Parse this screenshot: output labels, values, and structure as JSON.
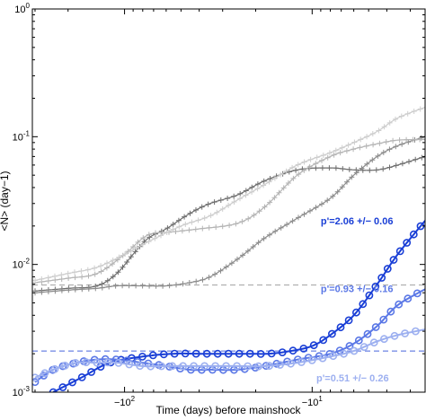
{
  "chart_data": {
    "type": "line",
    "title": "",
    "xlabel": "Time (days) before mainshock",
    "ylabel": "<N> (day−1)",
    "x_scale": "log",
    "y_scale": "log",
    "x_axis_direction": "days before mainshock decreasing to the right",
    "xlim": [
      -310,
      -2.5
    ],
    "ylim": [
      0.001,
      1
    ],
    "x_tick_labels": [
      {
        "value": -100,
        "label": "−10",
        "sup": "2"
      },
      {
        "value": -10,
        "label": "−10",
        "sup": "1"
      }
    ],
    "y_tick_labels": [
      {
        "value": 0.001,
        "label": "10",
        "sup": "-3"
      },
      {
        "value": 0.01,
        "label": "10",
        "sup": "-2"
      },
      {
        "value": 0.1,
        "label": "10",
        "sup": "-1"
      },
      {
        "value": 1,
        "label": "10",
        "sup": "0"
      }
    ],
    "grid": false,
    "legend": null,
    "colors": {
      "gray_dark": "#6e6e6e",
      "gray_mid": "#8c8c8c",
      "gray_light": "#b4b4b4",
      "gray_lighter": "#cdcdcd",
      "blue_dark": "#1a3fd6",
      "blue_mid": "#5b78e6",
      "blue_light": "#9db0f0",
      "baseline_gray": "#8a8a8a",
      "baseline_blue": "#1a3fd6"
    },
    "baselines": [
      {
        "value": 0.0069,
        "color": "baseline_gray"
      },
      {
        "value": 0.0021,
        "color": "baseline_blue"
      }
    ],
    "series": [
      {
        "color": "gray_dark",
        "marker": "plus",
        "x": [
          -300,
          -200,
          -140,
          -110,
          -90,
          -75,
          -60,
          -45,
          -35,
          -25,
          -18,
          -12,
          -8,
          -6,
          -4.5,
          -3.5,
          -2.5
        ],
        "y": [
          0.0062,
          0.0065,
          0.0068,
          0.0085,
          0.012,
          0.016,
          0.019,
          0.025,
          0.03,
          0.035,
          0.045,
          0.055,
          0.057,
          0.055,
          0.055,
          0.06,
          0.07
        ]
      },
      {
        "color": "gray_mid",
        "marker": "plus",
        "x": [
          -300,
          -200,
          -140,
          -110,
          -80,
          -60,
          -45,
          -35,
          -25,
          -18,
          -12,
          -8,
          -6,
          -4.5,
          -3.5,
          -2.5
        ],
        "y": [
          0.006,
          0.0063,
          0.0065,
          0.0068,
          0.0068,
          0.0068,
          0.0072,
          0.008,
          0.011,
          0.016,
          0.023,
          0.033,
          0.05,
          0.07,
          0.085,
          0.1
        ]
      },
      {
        "color": "gray_light",
        "marker": "plus",
        "x": [
          -300,
          -200,
          -140,
          -100,
          -75,
          -55,
          -40,
          -25,
          -18,
          -12,
          -8,
          -6,
          -4.5,
          -3.5,
          -2.5
        ],
        "y": [
          0.0072,
          0.0078,
          0.0085,
          0.012,
          0.017,
          0.018,
          0.019,
          0.021,
          0.028,
          0.05,
          0.07,
          0.08,
          0.088,
          0.094,
          0.095
        ]
      },
      {
        "color": "gray_lighter",
        "marker": "plus",
        "x": [
          -300,
          -200,
          -140,
          -100,
          -75,
          -50,
          -35,
          -25,
          -18,
          -12,
          -8,
          -6,
          -4.5,
          -3.5,
          -2.5
        ],
        "y": [
          0.0075,
          0.0085,
          0.0095,
          0.012,
          0.015,
          0.02,
          0.024,
          0.032,
          0.042,
          0.06,
          0.075,
          0.09,
          0.11,
          0.14,
          0.17
        ]
      },
      {
        "color": "blue_dark",
        "marker": "circle",
        "x": [
          -240,
          -170,
          -120,
          -80,
          -55,
          -40,
          -30,
          -22,
          -17,
          -13,
          -10,
          -8,
          -6,
          -4.5,
          -3.5,
          -2.5
        ],
        "y": [
          0.001,
          0.0013,
          0.0017,
          0.0019,
          0.002,
          0.002,
          0.002,
          0.002,
          0.002,
          0.0021,
          0.0023,
          0.0028,
          0.004,
          0.007,
          0.012,
          0.022
        ]
      },
      {
        "color": "blue_mid",
        "marker": "circle",
        "x": [
          -300,
          -240,
          -180,
          -140,
          -110,
          -80,
          -60,
          -45,
          -35,
          -25,
          -18,
          -12,
          -8,
          -6,
          -4.5,
          -3.5,
          -2.5
        ],
        "y": [
          0.0012,
          0.0015,
          0.0017,
          0.0018,
          0.0018,
          0.0017,
          0.0016,
          0.0015,
          0.0015,
          0.0015,
          0.0016,
          0.0018,
          0.002,
          0.0024,
          0.0033,
          0.0048,
          0.0064
        ]
      },
      {
        "color": "blue_light",
        "marker": "circle",
        "x": [
          -300,
          -240,
          -180,
          -140,
          -110,
          -80,
          -60,
          -45,
          -35,
          -25,
          -18,
          -12,
          -8,
          -6,
          -4.5,
          -3.5,
          -2.5
        ],
        "y": [
          0.0013,
          0.0015,
          0.0017,
          0.0017,
          0.0017,
          0.0016,
          0.0016,
          0.0016,
          0.0016,
          0.0016,
          0.0016,
          0.0017,
          0.0019,
          0.0021,
          0.0025,
          0.0028,
          0.0031
        ]
      }
    ],
    "annotations": [
      {
        "text": "p'=2.06 +/− 0.06",
        "color": "blue_dark",
        "x": -9.0,
        "y": 0.022
      },
      {
        "text": "p'=0.93 +/− 0.16",
        "color": "blue_mid",
        "x": -9.0,
        "y": 0.0065
      },
      {
        "text": "p'=0.51 +/− 0.26",
        "color": "blue_light",
        "x": -9.5,
        "y": 0.0013
      }
    ]
  }
}
